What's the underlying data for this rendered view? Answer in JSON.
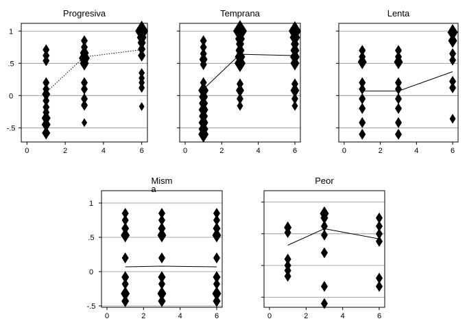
{
  "chart_data": [
    {
      "type": "scatter",
      "title": "Progresiva",
      "xlim": [
        -0.3,
        6.3
      ],
      "ylim": [
        -0.72,
        1.12
      ],
      "xticks": [
        0,
        2,
        4,
        6
      ],
      "yticks": [
        1,
        0.5,
        0,
        -0.5
      ],
      "ytick_labels": [
        "1",
        ".5",
        "0",
        "-.5"
      ],
      "show_yticks": true,
      "hlines": [
        1,
        0.5,
        0,
        -0.5
      ],
      "trend_style": "dotted",
      "trend": [
        [
          1,
          0.05
        ],
        [
          3,
          0.6
        ],
        [
          6,
          0.71
        ]
      ],
      "points": [
        {
          "x": 1,
          "y": 0.71,
          "s": 1
        },
        {
          "x": 1,
          "y": 0.62,
          "s": 1
        },
        {
          "x": 1,
          "y": 0.54,
          "s": 1
        },
        {
          "x": 1,
          "y": 0.2,
          "s": 1
        },
        {
          "x": 1,
          "y": 0.1,
          "s": 1
        },
        {
          "x": 1,
          "y": 0.02,
          "s": 1.2
        },
        {
          "x": 1,
          "y": -0.08,
          "s": 1
        },
        {
          "x": 1,
          "y": -0.18,
          "s": 1
        },
        {
          "x": 1,
          "y": -0.26,
          "s": 1
        },
        {
          "x": 1,
          "y": -0.35,
          "s": 1.3
        },
        {
          "x": 1,
          "y": -0.45,
          "s": 1.3
        },
        {
          "x": 1,
          "y": -0.58,
          "s": 1.2
        },
        {
          "x": 3,
          "y": 0.85,
          "s": 1
        },
        {
          "x": 3,
          "y": 0.75,
          "s": 1
        },
        {
          "x": 3,
          "y": 0.66,
          "s": 1.3
        },
        {
          "x": 3,
          "y": 0.58,
          "s": 1.6
        },
        {
          "x": 3,
          "y": 0.5,
          "s": 1.3
        },
        {
          "x": 3,
          "y": 0.2,
          "s": 1
        },
        {
          "x": 3,
          "y": 0.1,
          "s": 1
        },
        {
          "x": 3,
          "y": -0.05,
          "s": 1
        },
        {
          "x": 3,
          "y": -0.15,
          "s": 1
        },
        {
          "x": 3,
          "y": -0.42,
          "s": 0.8
        },
        {
          "x": 6,
          "y": 1.0,
          "s": 1.9
        },
        {
          "x": 6,
          "y": 0.9,
          "s": 1.4
        },
        {
          "x": 6,
          "y": 0.82,
          "s": 1.2
        },
        {
          "x": 6,
          "y": 0.72,
          "s": 1.1
        },
        {
          "x": 6,
          "y": 0.62,
          "s": 1.1
        },
        {
          "x": 6,
          "y": 0.35,
          "s": 0.9
        },
        {
          "x": 6,
          "y": 0.27,
          "s": 0.9
        },
        {
          "x": 6,
          "y": 0.2,
          "s": 0.9
        },
        {
          "x": 6,
          "y": 0.12,
          "s": 0.9
        },
        {
          "x": 6,
          "y": -0.17,
          "s": 0.8
        }
      ]
    },
    {
      "type": "scatter",
      "title": "Temprana",
      "xlim": [
        -0.3,
        6.3
      ],
      "ylim": [
        -0.72,
        1.12
      ],
      "xticks": [
        0,
        2,
        4,
        6
      ],
      "yticks": [
        1,
        0.5,
        0,
        -0.5
      ],
      "ytick_labels": [
        "1",
        ".5",
        "0",
        "-.5"
      ],
      "show_yticks": false,
      "hlines": [
        1,
        0.5,
        0,
        -0.5
      ],
      "trend_style": "solid",
      "trend": [
        [
          1,
          0.1
        ],
        [
          3,
          0.64
        ],
        [
          6,
          0.62
        ]
      ],
      "points": [
        {
          "x": 1,
          "y": 0.85,
          "s": 1
        },
        {
          "x": 1,
          "y": 0.75,
          "s": 1
        },
        {
          "x": 1,
          "y": 0.65,
          "s": 1
        },
        {
          "x": 1,
          "y": 0.56,
          "s": 1.2
        },
        {
          "x": 1,
          "y": 0.48,
          "s": 1
        },
        {
          "x": 1,
          "y": 0.2,
          "s": 1
        },
        {
          "x": 1,
          "y": 0.08,
          "s": 1.5
        },
        {
          "x": 1,
          "y": -0.02,
          "s": 1.3
        },
        {
          "x": 1,
          "y": -0.12,
          "s": 1.3
        },
        {
          "x": 1,
          "y": -0.22,
          "s": 1.4
        },
        {
          "x": 1,
          "y": -0.32,
          "s": 1.3
        },
        {
          "x": 1,
          "y": -0.42,
          "s": 1.4
        },
        {
          "x": 1,
          "y": -0.52,
          "s": 1.4
        },
        {
          "x": 1,
          "y": -0.6,
          "s": 1.5
        },
        {
          "x": 3,
          "y": 1.0,
          "s": 2.0
        },
        {
          "x": 3,
          "y": 0.88,
          "s": 1.4
        },
        {
          "x": 3,
          "y": 0.8,
          "s": 1.2
        },
        {
          "x": 3,
          "y": 0.7,
          "s": 1.3
        },
        {
          "x": 3,
          "y": 0.6,
          "s": 1.5
        },
        {
          "x": 3,
          "y": 0.5,
          "s": 1.6
        },
        {
          "x": 3,
          "y": 0.18,
          "s": 1
        },
        {
          "x": 3,
          "y": 0.08,
          "s": 1.2
        },
        {
          "x": 3,
          "y": -0.05,
          "s": 1
        },
        {
          "x": 3,
          "y": -0.16,
          "s": 0.9
        },
        {
          "x": 6,
          "y": 1.0,
          "s": 1.8
        },
        {
          "x": 6,
          "y": 0.9,
          "s": 1.5
        },
        {
          "x": 6,
          "y": 0.8,
          "s": 1.2
        },
        {
          "x": 6,
          "y": 0.7,
          "s": 1.3
        },
        {
          "x": 6,
          "y": 0.6,
          "s": 1.4
        },
        {
          "x": 6,
          "y": 0.5,
          "s": 1.3
        },
        {
          "x": 6,
          "y": 0.18,
          "s": 1
        },
        {
          "x": 6,
          "y": 0.08,
          "s": 1.3
        },
        {
          "x": 6,
          "y": -0.05,
          "s": 1
        },
        {
          "x": 6,
          "y": -0.16,
          "s": 0.9
        }
      ]
    },
    {
      "type": "scatter",
      "title": "Lenta",
      "xlim": [
        -0.3,
        6.3
      ],
      "ylim": [
        -0.72,
        1.12
      ],
      "xticks": [
        0,
        2,
        4,
        6
      ],
      "yticks": [
        1,
        0.5,
        0,
        -0.5
      ],
      "ytick_labels": [
        "1",
        ".5",
        "0",
        "-.5"
      ],
      "show_yticks": false,
      "hlines": [
        1,
        0.5,
        0,
        -0.5
      ],
      "trend_style": "solid",
      "trend": [
        [
          1,
          0.07
        ],
        [
          3,
          0.07
        ],
        [
          6,
          0.37
        ]
      ],
      "points": [
        {
          "x": 1,
          "y": 0.7,
          "s": 1
        },
        {
          "x": 1,
          "y": 0.6,
          "s": 1
        },
        {
          "x": 1,
          "y": 0.52,
          "s": 1.3
        },
        {
          "x": 1,
          "y": 0.2,
          "s": 1
        },
        {
          "x": 1,
          "y": 0.1,
          "s": 1
        },
        {
          "x": 1,
          "y": -0.05,
          "s": 1
        },
        {
          "x": 1,
          "y": -0.2,
          "s": 1
        },
        {
          "x": 1,
          "y": -0.42,
          "s": 1
        },
        {
          "x": 1,
          "y": -0.6,
          "s": 1
        },
        {
          "x": 3,
          "y": 0.7,
          "s": 1
        },
        {
          "x": 3,
          "y": 0.6,
          "s": 1
        },
        {
          "x": 3,
          "y": 0.52,
          "s": 1.3
        },
        {
          "x": 3,
          "y": 0.2,
          "s": 1
        },
        {
          "x": 3,
          "y": 0.1,
          "s": 1
        },
        {
          "x": 3,
          "y": -0.05,
          "s": 1
        },
        {
          "x": 3,
          "y": -0.2,
          "s": 1
        },
        {
          "x": 3,
          "y": -0.42,
          "s": 1
        },
        {
          "x": 3,
          "y": -0.6,
          "s": 1
        },
        {
          "x": 6,
          "y": 0.98,
          "s": 1.5
        },
        {
          "x": 6,
          "y": 0.85,
          "s": 1.3
        },
        {
          "x": 6,
          "y": 0.65,
          "s": 1
        },
        {
          "x": 6,
          "y": 0.55,
          "s": 1
        },
        {
          "x": 6,
          "y": 0.22,
          "s": 1
        },
        {
          "x": 6,
          "y": 0.12,
          "s": 1
        },
        {
          "x": 6,
          "y": -0.36,
          "s": 0.9
        }
      ]
    },
    {
      "type": "scatter",
      "title": "Mism\na",
      "xlim": [
        -0.3,
        6.3
      ],
      "ylim": [
        -0.52,
        1.18
      ],
      "xticks": [
        0,
        2,
        4,
        6
      ],
      "yticks": [
        1,
        0.5,
        0,
        -0.5
      ],
      "ytick_labels": [
        "1",
        ".5",
        "0",
        "-.5"
      ],
      "show_yticks": true,
      "hlines": [
        1,
        0.5,
        0,
        -0.5
      ],
      "trend_style": "solid",
      "trend": [
        [
          1,
          0.07
        ],
        [
          3,
          0.08
        ],
        [
          6,
          0.07
        ]
      ],
      "points": [
        {
          "x": 1,
          "y": 0.85,
          "s": 1
        },
        {
          "x": 1,
          "y": 0.75,
          "s": 1
        },
        {
          "x": 1,
          "y": 0.63,
          "s": 1.1
        },
        {
          "x": 1,
          "y": 0.53,
          "s": 1.3
        },
        {
          "x": 1,
          "y": 0.2,
          "s": 1
        },
        {
          "x": 1,
          "y": -0.08,
          "s": 1.1
        },
        {
          "x": 1,
          "y": -0.18,
          "s": 1
        },
        {
          "x": 1,
          "y": -0.32,
          "s": 1.3
        },
        {
          "x": 1,
          "y": -0.43,
          "s": 1.1
        },
        {
          "x": 3,
          "y": 0.85,
          "s": 1
        },
        {
          "x": 3,
          "y": 0.75,
          "s": 1
        },
        {
          "x": 3,
          "y": 0.63,
          "s": 1.1
        },
        {
          "x": 3,
          "y": 0.53,
          "s": 1.3
        },
        {
          "x": 3,
          "y": 0.2,
          "s": 1
        },
        {
          "x": 3,
          "y": -0.08,
          "s": 1.1
        },
        {
          "x": 3,
          "y": -0.18,
          "s": 1
        },
        {
          "x": 3,
          "y": -0.32,
          "s": 1.3
        },
        {
          "x": 3,
          "y": -0.43,
          "s": 1.1
        },
        {
          "x": 6,
          "y": 0.85,
          "s": 1
        },
        {
          "x": 6,
          "y": 0.75,
          "s": 1
        },
        {
          "x": 6,
          "y": 0.63,
          "s": 1.1
        },
        {
          "x": 6,
          "y": 0.53,
          "s": 1.3
        },
        {
          "x": 6,
          "y": 0.2,
          "s": 1
        },
        {
          "x": 6,
          "y": -0.08,
          "s": 1.1
        },
        {
          "x": 6,
          "y": -0.18,
          "s": 1
        },
        {
          "x": 6,
          "y": -0.32,
          "s": 1.3
        },
        {
          "x": 6,
          "y": -0.43,
          "s": 1.1
        }
      ]
    },
    {
      "type": "scatter",
      "title": "Peor",
      "xlim": [
        -0.3,
        6.3
      ],
      "ylim": [
        -0.66,
        1.18
      ],
      "xticks": [
        0,
        2,
        4,
        6
      ],
      "yticks": [
        1,
        0.5,
        0,
        -0.5
      ],
      "ytick_labels": [
        "1",
        ".5",
        "0",
        "-.5"
      ],
      "show_yticks": false,
      "hlines": [
        1,
        0.5,
        0,
        -0.5
      ],
      "trend_style": "solid",
      "trend": [
        [
          1,
          0.32
        ],
        [
          3,
          0.58
        ],
        [
          6,
          0.42
        ]
      ],
      "points": [
        {
          "x": 1,
          "y": 0.6,
          "s": 1.1
        },
        {
          "x": 1,
          "y": 0.52,
          "s": 1
        },
        {
          "x": 1,
          "y": 0.1,
          "s": 1
        },
        {
          "x": 1,
          "y": 0.0,
          "s": 1
        },
        {
          "x": 1,
          "y": -0.08,
          "s": 1
        },
        {
          "x": 1,
          "y": -0.17,
          "s": 1
        },
        {
          "x": 3,
          "y": 0.82,
          "s": 1.3
        },
        {
          "x": 3,
          "y": 0.75,
          "s": 1.1
        },
        {
          "x": 3,
          "y": 0.62,
          "s": 1
        },
        {
          "x": 3,
          "y": 0.48,
          "s": 1
        },
        {
          "x": 3,
          "y": 0.2,
          "s": 1
        },
        {
          "x": 3,
          "y": -0.33,
          "s": 1
        },
        {
          "x": 3,
          "y": -0.6,
          "s": 1
        },
        {
          "x": 6,
          "y": 0.75,
          "s": 1
        },
        {
          "x": 6,
          "y": 0.62,
          "s": 1
        },
        {
          "x": 6,
          "y": 0.5,
          "s": 1
        },
        {
          "x": 6,
          "y": 0.38,
          "s": 1
        },
        {
          "x": 6,
          "y": -0.2,
          "s": 1
        },
        {
          "x": 6,
          "y": -0.33,
          "s": 1
        }
      ]
    }
  ]
}
